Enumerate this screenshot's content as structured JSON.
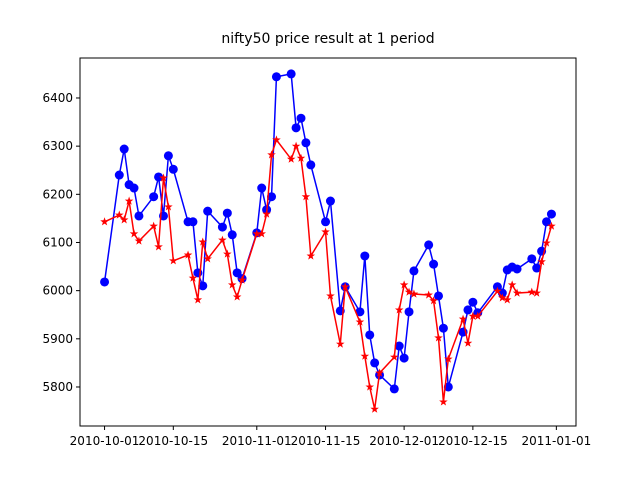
{
  "chart_data": {
    "type": "line",
    "title": "nifty50 price result at 1 period",
    "x": [
      "2010-10-01",
      "2010-10-04",
      "2010-10-05",
      "2010-10-06",
      "2010-10-07",
      "2010-10-08",
      "2010-10-11",
      "2010-10-12",
      "2010-10-13",
      "2010-10-14",
      "2010-10-15",
      "2010-10-18",
      "2010-10-19",
      "2010-10-20",
      "2010-10-21",
      "2010-10-22",
      "2010-10-25",
      "2010-10-26",
      "2010-10-27",
      "2010-10-28",
      "2010-10-29",
      "2010-11-01",
      "2010-11-02",
      "2010-11-03",
      "2010-11-04",
      "2010-11-05",
      "2010-11-08",
      "2010-11-09",
      "2010-11-10",
      "2010-11-11",
      "2010-11-12",
      "2010-11-15",
      "2010-11-16",
      "2010-11-18",
      "2010-11-19",
      "2010-11-22",
      "2010-11-23",
      "2010-11-24",
      "2010-11-25",
      "2010-11-26",
      "2010-11-29",
      "2010-11-30",
      "2010-12-01",
      "2010-12-02",
      "2010-12-03",
      "2010-12-06",
      "2010-12-07",
      "2010-12-08",
      "2010-12-09",
      "2010-12-10",
      "2010-12-13",
      "2010-12-14",
      "2010-12-15",
      "2010-12-16",
      "2010-12-20",
      "2010-12-21",
      "2010-12-22",
      "2010-12-23",
      "2010-12-24",
      "2010-12-27",
      "2010-12-28",
      "2010-12-29",
      "2010-12-30",
      "2010-12-31"
    ],
    "series": [
      {
        "color": "#0000ff",
        "marker": "circle",
        "values": [
          6018,
          6240,
          6294,
          6220,
          6213,
          6155,
          6195,
          6236,
          6155,
          6280,
          6252,
          6143,
          6143,
          6037,
          6010,
          6165,
          6132,
          6161,
          6116,
          6037,
          6025,
          6120,
          6213,
          6168,
          6195,
          6444,
          6450,
          6338,
          6358,
          6307,
          6261,
          6143,
          6186,
          5958,
          6008,
          5956,
          6072,
          5908,
          5850,
          5825,
          5796,
          5885,
          5860,
          5956,
          6041,
          6095,
          6055,
          5989,
          5922,
          5800,
          5914,
          5960,
          5976,
          5954,
          6008,
          5995,
          6043,
          6049,
          6045,
          6066,
          6047,
          6082,
          6143,
          6159
        ]
      },
      {
        "color": "#ff0000",
        "marker": "star",
        "values": [
          6143,
          6157,
          6147,
          6186,
          6118,
          6103,
          6134,
          6091,
          6234,
          6174,
          6062,
          6074,
          6026,
          5981,
          6101,
          6066,
          6105,
          6076,
          6012,
          5987,
          6022,
          6118,
          6118,
          6159,
          6282,
          6313,
          6273,
          6300,
          6275,
          6195,
          6072,
          6122,
          5989,
          5889,
          6008,
          5935,
          5864,
          5800,
          5754,
          5829,
          5862,
          5960,
          6012,
          5997,
          5993,
          5991,
          5979,
          5902,
          5769,
          5858,
          5941,
          5891,
          5947,
          5947,
          5999,
          5985,
          5981,
          6012,
          5995,
          5997,
          5995,
          6060,
          6099,
          6134
        ]
      }
    ],
    "xlim": [
      "2010-09-26",
      "2011-01-05"
    ],
    "xticks": [
      "2010-10-01",
      "2010-10-15",
      "2010-11-01",
      "2010-11-15",
      "2010-12-01",
      "2010-12-15",
      "2011-01-01"
    ],
    "ylim": [
      5719,
      6483
    ],
    "yticks": [
      5800,
      5900,
      6000,
      6100,
      6200,
      6300,
      6400
    ],
    "grid": false
  }
}
